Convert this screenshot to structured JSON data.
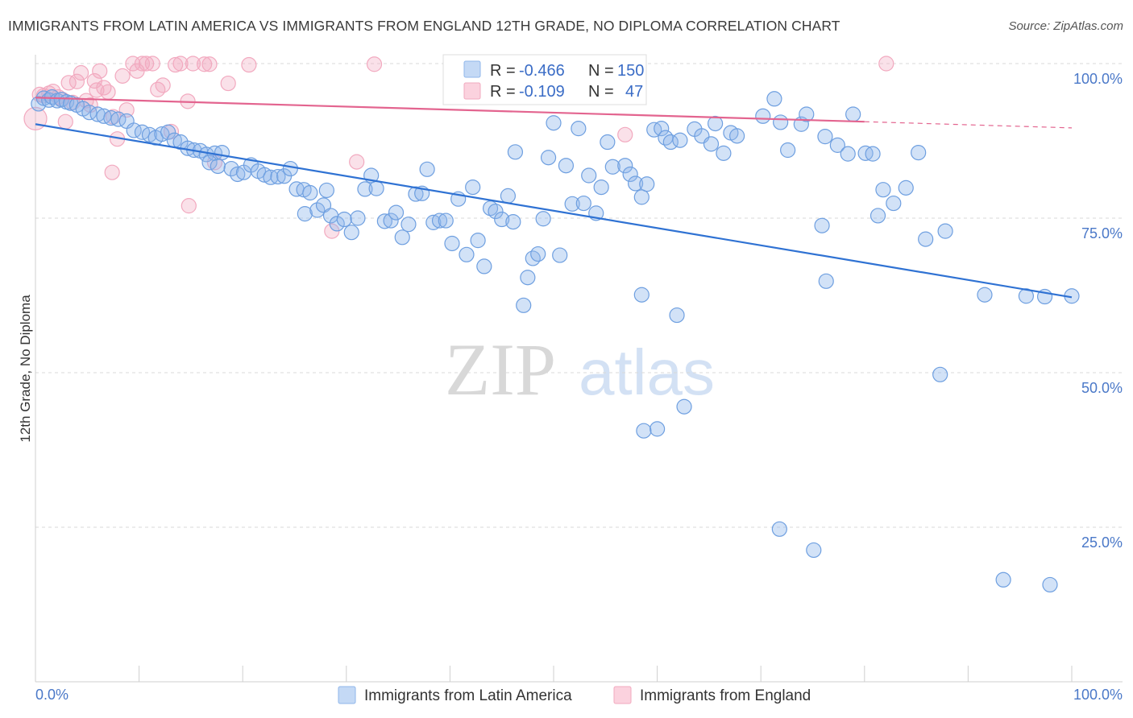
{
  "title": "IMMIGRANTS FROM LATIN AMERICA VS IMMIGRANTS FROM ENGLAND 12TH GRADE, NO DIPLOMA CORRELATION CHART",
  "source": "Source: ZipAtlas.com",
  "watermark": {
    "zip": "ZIP",
    "atlas": "atlas"
  },
  "legend": {
    "rows": [
      {
        "r_label": "R =",
        "r_value": "-0.466",
        "n_label": "N =",
        "n_value": "150",
        "color": "#8fb6ea"
      },
      {
        "r_label": "R =",
        "r_value": "-0.109",
        "n_label": "N =",
        "n_value": "47",
        "color": "#f2a9bf"
      }
    ]
  },
  "chart_data": {
    "type": "scatter",
    "title": "IMMIGRANTS FROM LATIN AMERICA VS IMMIGRANTS FROM ENGLAND 12TH GRADE, NO DIPLOMA CORRELATION CHART",
    "xlabel": "",
    "ylabel": "12th Grade, No Diploma",
    "xlim": [
      0,
      100
    ],
    "ylim": [
      0,
      100
    ],
    "x_tick_labels": [
      "0.0%",
      "100.0%"
    ],
    "y_ticks": [
      25,
      50,
      75,
      100
    ],
    "y_tick_labels": [
      "25.0%",
      "50.0%",
      "75.0%",
      "100.0%"
    ],
    "grid": "horizontal dashed",
    "legend_position": "bottom",
    "series": [
      {
        "name": "Immigrants from Latin America",
        "color": "#8fb6ea",
        "line_color": "#2f72d3",
        "trend": {
          "x": [
            0,
            100
          ],
          "y": [
            90.2,
            62.2
          ]
        },
        "points": [
          [
            0.3,
            93.5
          ],
          [
            0.8,
            94.4
          ],
          [
            1.3,
            94.1
          ],
          [
            1.6,
            94.6
          ],
          [
            2.1,
            94.0
          ],
          [
            2.5,
            94.2
          ],
          [
            3.0,
            93.8
          ],
          [
            3.4,
            93.6
          ],
          [
            4.0,
            93.3
          ],
          [
            4.6,
            92.7
          ],
          [
            5.2,
            92.1
          ],
          [
            6.0,
            91.8
          ],
          [
            6.6,
            91.5
          ],
          [
            7.3,
            91.2
          ],
          [
            8.0,
            91.0
          ],
          [
            8.8,
            90.7
          ],
          [
            9.5,
            89.2
          ],
          [
            10.3,
            88.9
          ],
          [
            11.0,
            88.5
          ],
          [
            11.6,
            88.0
          ],
          [
            12.2,
            88.6
          ],
          [
            12.8,
            88.9
          ],
          [
            13.4,
            87.6
          ],
          [
            14.0,
            87.3
          ],
          [
            14.7,
            86.3
          ],
          [
            15.3,
            86.0
          ],
          [
            15.9,
            85.9
          ],
          [
            16.5,
            85.3
          ],
          [
            17.3,
            85.5
          ],
          [
            18.0,
            85.6
          ],
          [
            16.8,
            84.0
          ],
          [
            17.6,
            83.4
          ],
          [
            18.9,
            83.0
          ],
          [
            19.5,
            82.1
          ],
          [
            20.1,
            82.4
          ],
          [
            20.8,
            83.6
          ],
          [
            21.5,
            82.6
          ],
          [
            22.1,
            82.0
          ],
          [
            22.7,
            81.6
          ],
          [
            23.4,
            81.7
          ],
          [
            24.0,
            81.8
          ],
          [
            24.6,
            83.0
          ],
          [
            25.2,
            79.7
          ],
          [
            25.9,
            79.6
          ],
          [
            26.5,
            79.1
          ],
          [
            26.0,
            75.7
          ],
          [
            27.2,
            76.3
          ],
          [
            27.8,
            77.1
          ],
          [
            28.5,
            75.4
          ],
          [
            28.1,
            79.5
          ],
          [
            29.1,
            74.1
          ],
          [
            29.8,
            74.8
          ],
          [
            30.5,
            72.7
          ],
          [
            31.1,
            75.0
          ],
          [
            31.8,
            79.7
          ],
          [
            32.4,
            81.9
          ],
          [
            32.9,
            79.8
          ],
          [
            33.7,
            74.5
          ],
          [
            34.3,
            74.6
          ],
          [
            34.8,
            75.9
          ],
          [
            35.4,
            71.9
          ],
          [
            36.0,
            74.0
          ],
          [
            36.7,
            78.9
          ],
          [
            37.3,
            79.0
          ],
          [
            37.8,
            82.9
          ],
          [
            38.4,
            74.3
          ],
          [
            39.0,
            74.6
          ],
          [
            39.6,
            74.6
          ],
          [
            40.2,
            70.9
          ],
          [
            40.8,
            78.1
          ],
          [
            41.6,
            69.1
          ],
          [
            42.2,
            80.0
          ],
          [
            42.7,
            71.4
          ],
          [
            43.3,
            67.2
          ],
          [
            43.9,
            76.6
          ],
          [
            44.4,
            76.1
          ],
          [
            45.0,
            74.8
          ],
          [
            45.6,
            78.6
          ],
          [
            46.1,
            74.4
          ],
          [
            46.3,
            85.7
          ],
          [
            47.1,
            60.9
          ],
          [
            47.5,
            65.4
          ],
          [
            48.0,
            68.5
          ],
          [
            48.5,
            69.2
          ],
          [
            49.0,
            74.9
          ],
          [
            49.5,
            84.8
          ],
          [
            50.0,
            90.4
          ],
          [
            50.6,
            69.0
          ],
          [
            51.2,
            83.5
          ],
          [
            51.8,
            77.3
          ],
          [
            52.4,
            89.5
          ],
          [
            52.9,
            77.4
          ],
          [
            53.4,
            81.9
          ],
          [
            54.1,
            75.8
          ],
          [
            54.6,
            80.0
          ],
          [
            55.2,
            87.3
          ],
          [
            55.7,
            83.3
          ],
          [
            56.3,
            94.9
          ],
          [
            56.9,
            83.5
          ],
          [
            57.4,
            82.1
          ],
          [
            57.9,
            80.6
          ],
          [
            58.5,
            78.4
          ],
          [
            59.0,
            80.5
          ],
          [
            59.7,
            89.3
          ],
          [
            60.4,
            89.5
          ],
          [
            60.8,
            88.0
          ],
          [
            61.3,
            87.3
          ],
          [
            61.9,
            59.3
          ],
          [
            62.6,
            44.5
          ],
          [
            62.2,
            87.6
          ],
          [
            63.6,
            89.4
          ],
          [
            64.3,
            88.3
          ],
          [
            65.2,
            87.0
          ],
          [
            65.6,
            90.3
          ],
          [
            66.4,
            85.5
          ],
          [
            67.1,
            88.8
          ],
          [
            67.7,
            88.3
          ],
          [
            70.2,
            91.5
          ],
          [
            71.3,
            94.3
          ],
          [
            71.9,
            90.5
          ],
          [
            72.6,
            86.0
          ],
          [
            73.9,
            90.2
          ],
          [
            74.4,
            91.8
          ],
          [
            75.9,
            73.8
          ],
          [
            76.2,
            88.2
          ],
          [
            77.4,
            86.8
          ],
          [
            78.4,
            85.4
          ],
          [
            78.9,
            91.8
          ],
          [
            80.1,
            85.5
          ],
          [
            81.3,
            75.4
          ],
          [
            81.8,
            79.6
          ],
          [
            82.8,
            77.4
          ],
          [
            85.2,
            85.6
          ],
          [
            85.9,
            71.6
          ],
          [
            87.3,
            49.7
          ],
          [
            87.8,
            72.9
          ],
          [
            91.6,
            62.6
          ],
          [
            75.1,
            21.3
          ],
          [
            71.8,
            24.7
          ],
          [
            60.0,
            40.9
          ],
          [
            58.7,
            40.6
          ],
          [
            58.5,
            62.6
          ],
          [
            80.8,
            85.4
          ],
          [
            76.3,
            64.8
          ],
          [
            84.0,
            79.9
          ],
          [
            93.4,
            16.5
          ],
          [
            97.9,
            15.7
          ],
          [
            95.6,
            62.4
          ],
          [
            100.0,
            62.4
          ],
          [
            97.4,
            62.3
          ]
        ]
      },
      {
        "name": "Immigrants from England",
        "color": "#f2a9bf",
        "line_color": "#e3648f",
        "trend": {
          "x": [
            0,
            80
          ],
          "y": [
            94.5,
            90.6
          ]
        },
        "trend_dashed": {
          "x": [
            80,
            100
          ],
          "y": [
            90.6,
            89.6
          ]
        },
        "points": [
          [
            0.0,
            91.1
          ],
          [
            0.4,
            95.0
          ],
          [
            0.8,
            94.8
          ],
          [
            1.3,
            95.2
          ],
          [
            1.7,
            95.5
          ],
          [
            2.2,
            94.6
          ],
          [
            2.6,
            94.2
          ],
          [
            2.9,
            90.6
          ],
          [
            3.2,
            96.9
          ],
          [
            3.6,
            93.7
          ],
          [
            4.0,
            97.1
          ],
          [
            4.4,
            98.5
          ],
          [
            4.9,
            94.0
          ],
          [
            5.3,
            93.3
          ],
          [
            5.7,
            97.2
          ],
          [
            6.2,
            98.8
          ],
          [
            6.6,
            96.1
          ],
          [
            7.0,
            95.4
          ],
          [
            7.5,
            91.4
          ],
          [
            7.9,
            87.8
          ],
          [
            8.4,
            98.0
          ],
          [
            8.8,
            92.5
          ],
          [
            9.4,
            100.0
          ],
          [
            9.8,
            98.8
          ],
          [
            10.3,
            100.0
          ],
          [
            10.7,
            100.0
          ],
          [
            11.3,
            100.0
          ],
          [
            11.8,
            95.8
          ],
          [
            12.3,
            96.5
          ],
          [
            13.1,
            89.0
          ],
          [
            13.5,
            99.8
          ],
          [
            14.0,
            100.0
          ],
          [
            14.7,
            93.9
          ],
          [
            14.8,
            77.0
          ],
          [
            15.2,
            100.0
          ],
          [
            16.3,
            99.9
          ],
          [
            16.8,
            99.9
          ],
          [
            17.3,
            84.0
          ],
          [
            18.6,
            96.8
          ],
          [
            20.6,
            99.8
          ],
          [
            28.6,
            72.9
          ],
          [
            31.0,
            84.1
          ],
          [
            32.7,
            99.9
          ],
          [
            82.1,
            100.0
          ],
          [
            7.4,
            82.4
          ],
          [
            5.9,
            95.7
          ],
          [
            56.9,
            88.5
          ]
        ]
      }
    ]
  }
}
